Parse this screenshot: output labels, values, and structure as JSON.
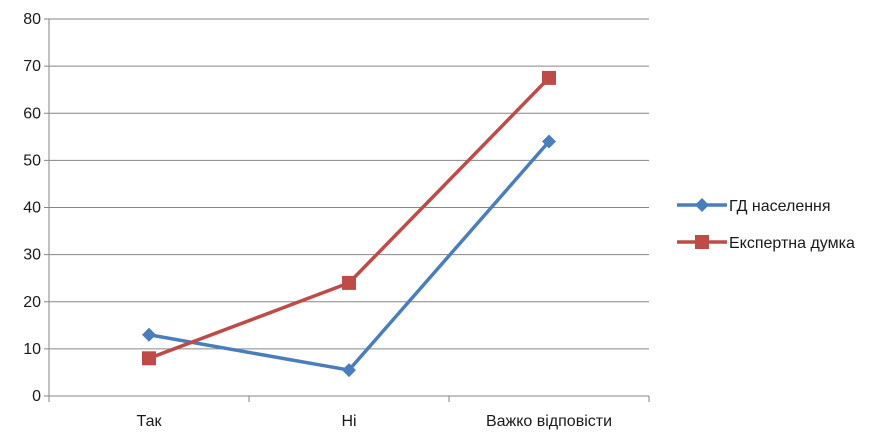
{
  "chart_data": {
    "type": "line",
    "categories": [
      "Так",
      "Ні",
      "Важко відповісти"
    ],
    "series": [
      {
        "name": "ГД населення",
        "values": [
          13,
          5.5,
          54
        ],
        "color": "#4a7ebb",
        "marker": "diamond"
      },
      {
        "name": "Експертна думка",
        "values": [
          8,
          24,
          67.5
        ],
        "color": "#be4b48",
        "marker": "square"
      }
    ],
    "ylim": [
      0,
      80
    ],
    "yticks": [
      0,
      10,
      20,
      30,
      40,
      50,
      60,
      70,
      80
    ],
    "grid": "horizontal",
    "legend": "right",
    "title": "",
    "xlabel": "",
    "ylabel": ""
  }
}
